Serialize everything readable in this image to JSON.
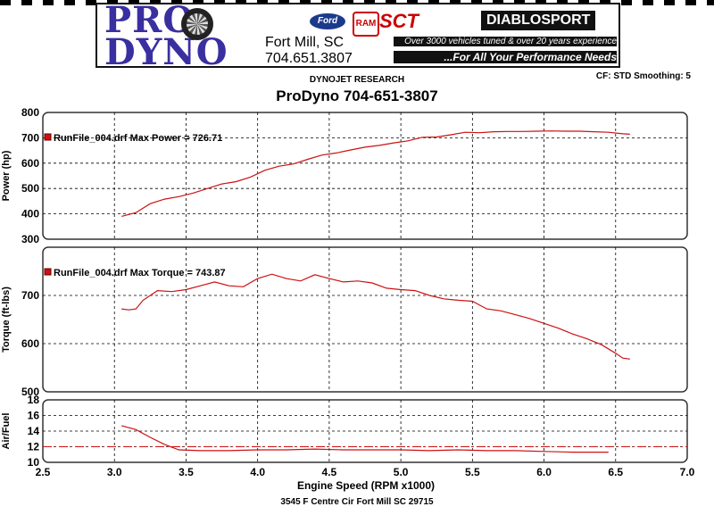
{
  "banner": {
    "logo_line1": "PRO",
    "logo_line2": "DYNO",
    "city": "Fort Mill, SC",
    "phone": "704.651.3807",
    "brand_ford": "Ford",
    "brand_ram": "RAM",
    "brand_sct": "SCT",
    "brand_diablo": "DIABLOSPORT",
    "tagline_1": "Over 3000 vehicles tuned & over 20 years experience",
    "tagline_2": "...For All Your Performance Needs"
  },
  "header": {
    "subtitle": "DYNOJET RESEARCH",
    "title": "ProDyno 704-651-3807",
    "cf_info": "CF: STD  Smoothing: 5"
  },
  "footer": "3545 F Centre Cir Fort Mill SC 29715",
  "colors": {
    "trace": "#cc1111",
    "grid": "#000000",
    "panel_border": "#333333"
  },
  "chart_data": {
    "type": "line",
    "xlabel": "Engine Speed (RPM x1000)",
    "xlim": [
      2.5,
      7.0
    ],
    "xticks": [
      "2.5",
      "3.0",
      "3.5",
      "4.0",
      "4.5",
      "5.0",
      "5.5",
      "6.0",
      "6.5",
      "7.0"
    ],
    "panels": [
      {
        "id": "power",
        "ylabel": "Power (hp)",
        "ylim": [
          300,
          800
        ],
        "yticks": [
          "300",
          "400",
          "500",
          "600",
          "700",
          "800"
        ],
        "annotation": "RunFile_004.drf Max Power = 726.71",
        "series": [
          {
            "x": [
              3.05,
              3.15,
              3.25,
              3.35,
              3.45,
              3.55,
              3.65,
              3.75,
              3.85,
              3.95,
              4.05,
              4.15,
              4.25,
              4.35,
              4.45,
              4.55,
              4.65,
              4.75,
              4.85,
              4.95,
              5.05,
              5.15,
              5.25,
              5.35,
              5.45,
              5.55,
              5.65,
              5.75,
              5.85,
              5.95,
              6.05,
              6.15,
              6.25,
              6.35,
              6.45,
              6.55,
              6.6
            ],
            "y": [
              390,
              405,
              440,
              458,
              468,
              482,
              500,
              518,
              527,
              545,
              572,
              588,
              597,
              615,
              632,
              640,
              652,
              663,
              670,
              680,
              688,
              702,
              703,
              712,
              722,
              720,
              724,
              725,
              725,
              726,
              727,
              726,
              726,
              724,
              722,
              716,
              714
            ]
          }
        ]
      },
      {
        "id": "torque",
        "ylabel": "Torque (ft-lbs)",
        "ylim": [
          500,
          800
        ],
        "yticks": [
          "500",
          "600",
          "700"
        ],
        "annotation": "RunFile_004.drf Max Torque = 743.87",
        "series": [
          {
            "x": [
              3.05,
              3.1,
              3.15,
              3.2,
              3.3,
              3.4,
              3.5,
              3.6,
              3.7,
              3.8,
              3.9,
              4.0,
              4.1,
              4.2,
              4.3,
              4.4,
              4.5,
              4.6,
              4.7,
              4.8,
              4.9,
              5.0,
              5.1,
              5.2,
              5.3,
              5.4,
              5.5,
              5.6,
              5.7,
              5.8,
              5.9,
              6.0,
              6.1,
              6.2,
              6.3,
              6.4,
              6.5,
              6.55,
              6.6
            ],
            "y": [
              672,
              670,
              672,
              690,
              710,
              708,
              712,
              720,
              728,
              720,
              718,
              735,
              744,
              735,
              730,
              743,
              735,
              728,
              730,
              726,
              715,
              712,
              710,
              700,
              693,
              690,
              688,
              672,
              668,
              660,
              652,
              642,
              632,
              620,
              610,
              598,
              580,
              570,
              568
            ]
          }
        ]
      },
      {
        "id": "afr",
        "ylabel": "Air/Fuel",
        "ylim": [
          10,
          18
        ],
        "yticks": [
          "10",
          "12",
          "14",
          "16",
          "18"
        ],
        "reference_line": 12,
        "annotation": "",
        "series": [
          {
            "x": [
              3.05,
              3.15,
              3.25,
              3.35,
              3.45,
              3.6,
              3.8,
              4.0,
              4.2,
              4.4,
              4.6,
              4.8,
              5.0,
              5.2,
              5.4,
              5.6,
              5.8,
              6.0,
              6.2,
              6.45
            ],
            "y": [
              14.7,
              14.2,
              13.2,
              12.3,
              11.6,
              11.5,
              11.5,
              11.6,
              11.6,
              11.7,
              11.6,
              11.6,
              11.6,
              11.5,
              11.6,
              11.5,
              11.5,
              11.4,
              11.3,
              11.3
            ]
          }
        ]
      }
    ]
  }
}
